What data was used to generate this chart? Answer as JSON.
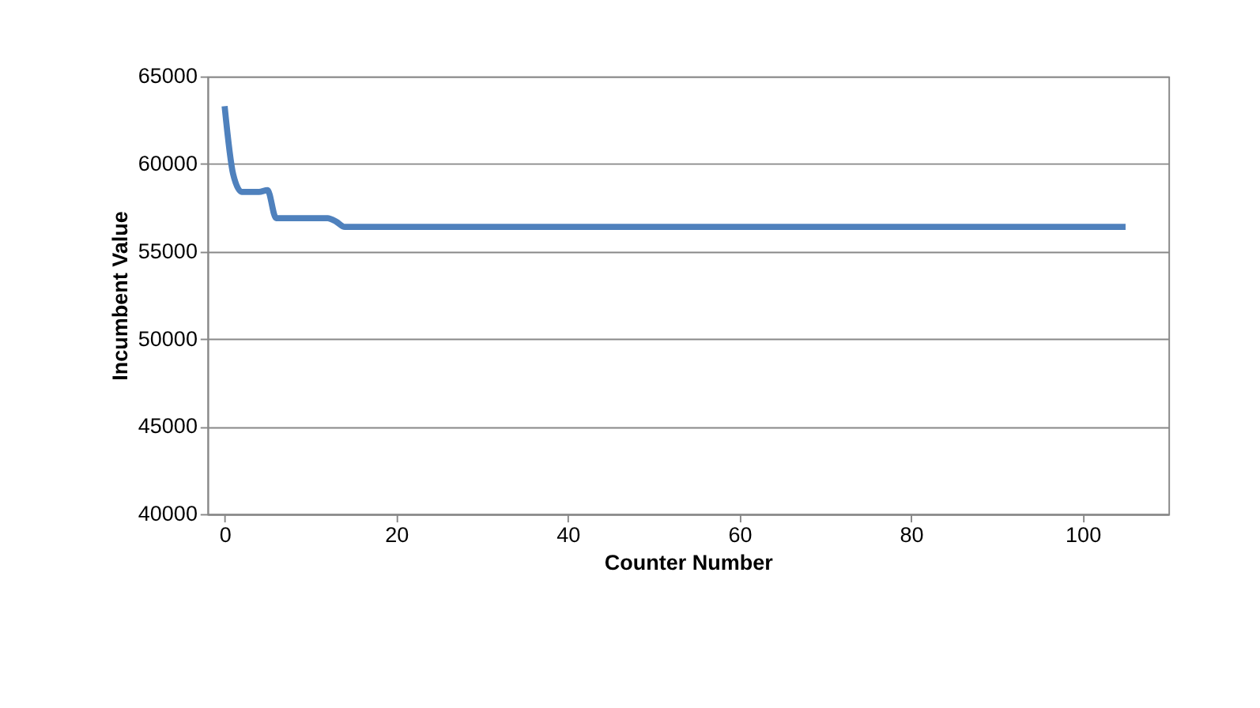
{
  "chart_data": {
    "type": "line",
    "xlabel": "Counter Number",
    "ylabel": "Incumbent Value",
    "x": [
      0,
      1,
      2,
      3,
      4,
      5,
      6,
      7,
      12,
      13,
      14,
      105
    ],
    "series": [
      {
        "color": "#4f81bd",
        "values": [
          63300,
          59400,
          58400,
          58400,
          58400,
          58500,
          56900,
          56900,
          56900,
          56700,
          56400,
          56400
        ]
      }
    ],
    "xlim": [
      -2,
      110
    ],
    "xticks": [
      0,
      20,
      40,
      60,
      80,
      100
    ],
    "ylim": [
      40000,
      65000
    ],
    "yticks": [
      40000,
      45000,
      50000,
      55000,
      60000,
      65000
    ],
    "grid": "y",
    "marker": "none",
    "line_style": "solid"
  }
}
